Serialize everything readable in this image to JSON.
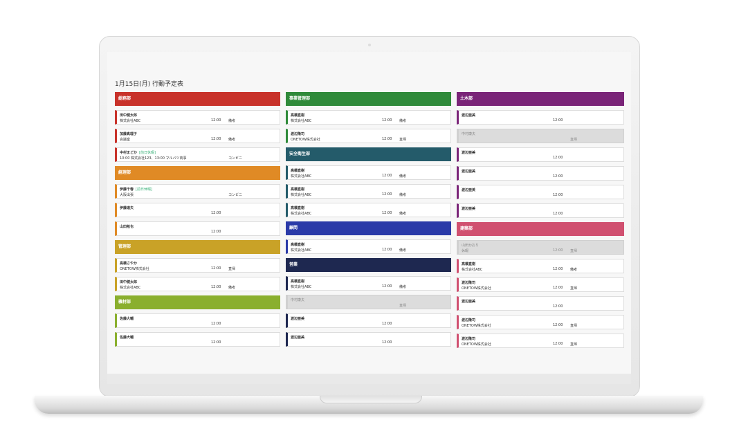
{
  "title": "1月15日(月) 行動予定表",
  "columns": [
    {
      "groups": [
        {
          "name": "総務部",
          "color": "#c8322a",
          "entries": [
            {
              "name": "田中健太郎",
              "detail": "株式会社ABC",
              "time": "12:00",
              "remark": "備考"
            },
            {
              "name": "加藤真理子",
              "detail": "会議室",
              "time": "12:00",
              "remark": "備考"
            },
            {
              "name": "中村まどか",
              "tag": "[前日休暇]",
              "detail": "10:00 株式会社123、13:00 マルバツ商事",
              "remark": "コンビニ"
            }
          ]
        },
        {
          "name": "経理部",
          "color": "#e08a25",
          "entries": [
            {
              "name": "伊藤千春",
              "tag": "[前日休暇]",
              "detail": "大阪出張",
              "remark": "コンビニ"
            },
            {
              "name": "伊藤達夫",
              "time": "12:00"
            },
            {
              "name": "山田拓也",
              "time": "12:00"
            }
          ]
        },
        {
          "name": "管理部",
          "color": "#c9a227",
          "entries": [
            {
              "name": "高橋さやか",
              "detail": "ONETOW株式会社",
              "time": "12:00",
              "remark": "直帰"
            },
            {
              "name": "田中健太郎",
              "detail": "株式会社ABC",
              "time": "12:00",
              "remark": "備考"
            }
          ]
        },
        {
          "name": "機材部",
          "color": "#8aaf2e",
          "entries": [
            {
              "name": "佐藤大輔",
              "time": "12:00"
            },
            {
              "name": "佐藤大輔",
              "time": "12:00"
            }
          ]
        }
      ]
    },
    {
      "groups": [
        {
          "name": "事業管理部",
          "color": "#2f8a3a",
          "entries": [
            {
              "name": "高橋直樹",
              "detail": "株式会社ABC",
              "time": "12:00",
              "remark": "備考"
            },
            {
              "name": "渡辺隆司",
              "detail": "ONETOW株式会社",
              "time": "12:00",
              "remark": "直帰"
            }
          ]
        },
        {
          "name": "安全衛生部",
          "color": "#245b6a",
          "entries": [
            {
              "name": "高橋直樹",
              "detail": "株式会社ABC",
              "time": "12:00",
              "remark": "備考"
            },
            {
              "name": "高橋直樹",
              "detail": "株式会社ABC",
              "time": "12:00",
              "remark": "備考"
            },
            {
              "name": "高橋直樹",
              "detail": "株式会社ABC",
              "time": "12:00",
              "remark": "備考"
            }
          ]
        },
        {
          "name": "顧問",
          "color": "#2a3aa8",
          "entries": [
            {
              "name": "高橋直樹",
              "detail": "株式会社ABC",
              "time": "12:00",
              "remark": "備考"
            }
          ]
        },
        {
          "name": "営業",
          "color": "#1e2850",
          "entries": [
            {
              "name": "高橋直樹",
              "detail": "株式会社ABC",
              "time": "12:00",
              "remark": "備考"
            },
            {
              "name": "中村康夫",
              "absent": true,
              "remark": "直帰"
            },
            {
              "name": "渡辺亜美",
              "time": "12:00"
            },
            {
              "name": "渡辺亜美",
              "time": "12:00"
            }
          ]
        }
      ]
    },
    {
      "groups": [
        {
          "name": "土木部",
          "color": "#7a2478",
          "entries": [
            {
              "name": "渡辺亜美",
              "time": "12:00"
            },
            {
              "name": "中村康夫",
              "absent": true,
              "remark": "直帰"
            },
            {
              "name": "渡辺亜美",
              "time": "12:00"
            },
            {
              "name": "渡辺亜美",
              "time": "12:00"
            },
            {
              "name": "渡辺亜美",
              "time": "12:00"
            },
            {
              "name": "渡辺亜美",
              "time": "12:00"
            }
          ]
        },
        {
          "name": "建築部",
          "color": "#d05070",
          "entries": [
            {
              "name": "山田かおり",
              "absent": true,
              "detail": "休暇",
              "time": "12:00",
              "remark": "直帰"
            },
            {
              "name": "高橋直樹",
              "detail": "株式会社ABC",
              "time": "12:00",
              "remark": "備考"
            },
            {
              "name": "渡辺隆司",
              "detail": "ONETOW株式会社",
              "time": "12:00",
              "remark": "直帰"
            },
            {
              "name": "渡辺亜美",
              "time": "12:00"
            },
            {
              "name": "渡辺隆司",
              "detail": "ONETOW株式会社",
              "time": "12:00",
              "remark": "直帰"
            },
            {
              "name": "渡辺隆司",
              "detail": "ONETOW株式会社",
              "time": "12:00",
              "remark": "直帰"
            }
          ]
        }
      ]
    }
  ]
}
